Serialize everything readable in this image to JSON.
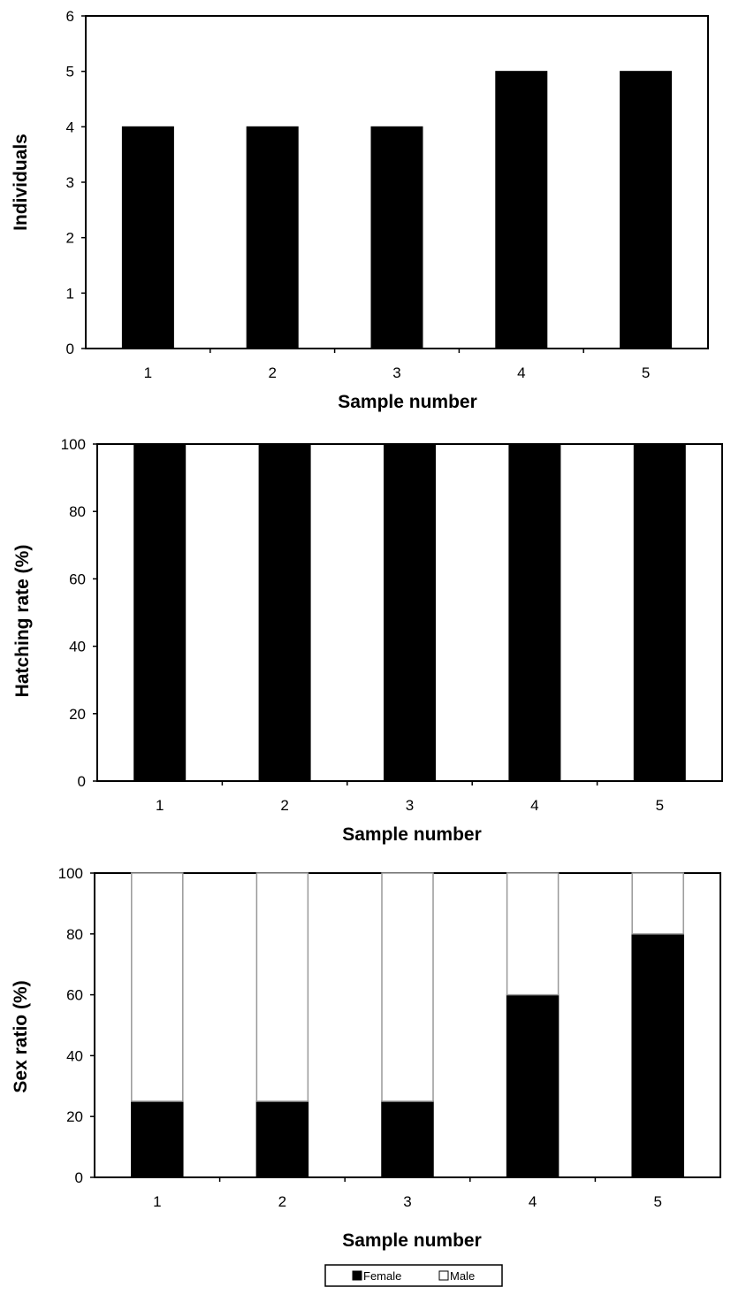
{
  "chart_data": [
    {
      "type": "bar",
      "categories": [
        "1",
        "2",
        "3",
        "4",
        "5"
      ],
      "values": [
        4,
        4,
        4,
        5,
        5
      ],
      "xlabel": "Sample number",
      "ylabel": "Individuals",
      "ylim": [
        0,
        6
      ],
      "yticks": [
        "0",
        "1",
        "2",
        "3",
        "4",
        "5",
        "6"
      ],
      "grid": false,
      "colors": {
        "bar": "#000000"
      }
    },
    {
      "type": "bar",
      "categories": [
        "1",
        "2",
        "3",
        "4",
        "5"
      ],
      "values": [
        100,
        100,
        100,
        100,
        100
      ],
      "xlabel": "Sample number",
      "ylabel": "Hatching rate (%)",
      "ylim": [
        0,
        100
      ],
      "yticks": [
        "0",
        "20",
        "40",
        "60",
        "80",
        "100"
      ],
      "grid": false,
      "colors": {
        "bar": "#000000"
      }
    },
    {
      "type": "bar",
      "stacked": true,
      "categories": [
        "1",
        "2",
        "3",
        "4",
        "5"
      ],
      "series": [
        {
          "name": "Female",
          "values": [
            25,
            25,
            25,
            60,
            80
          ],
          "color": "#000000"
        },
        {
          "name": "Male",
          "values": [
            75,
            75,
            75,
            40,
            20
          ],
          "color": "#ffffff"
        }
      ],
      "xlabel": "Sample number",
      "ylabel": "Sex ratio (%)",
      "ylim": [
        0,
        100
      ],
      "yticks": [
        "0",
        "20",
        "40",
        "60",
        "80",
        "100"
      ],
      "grid": false,
      "legend": {
        "position": "bottom-center",
        "entries": [
          "Female",
          "Male"
        ]
      }
    }
  ]
}
